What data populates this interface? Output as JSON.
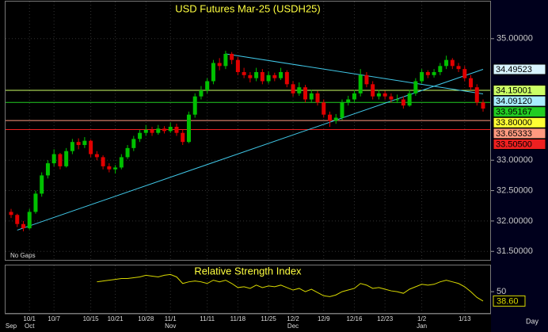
{
  "chart_data": {
    "type": "candlestick",
    "title": "USD Futures Mar-25 (USDH25)",
    "annotation": "No Gaps",
    "x_unit_label": "Day",
    "categories": [
      null,
      null,
      null,
      "10/1",
      null,
      null,
      null,
      "10/7",
      null,
      null,
      null,
      null,
      null,
      "10/15",
      null,
      null,
      null,
      "10/21",
      null,
      null,
      null,
      null,
      "10/28",
      null,
      null,
      null,
      "11/1",
      null,
      null,
      null,
      null,
      null,
      "11/11",
      null,
      null,
      null,
      null,
      "11/18",
      null,
      null,
      null,
      null,
      "11/25",
      null,
      null,
      null,
      "12/2",
      null,
      null,
      null,
      null,
      "12/9",
      null,
      null,
      null,
      null,
      "12/16",
      null,
      null,
      null,
      null,
      "12/23",
      null,
      null,
      null,
      null,
      null,
      "1/2",
      null,
      null,
      null,
      null,
      null,
      null,
      "1/13",
      null,
      null,
      null
    ],
    "month_labels": [
      "Sep",
      null,
      null,
      "Oct",
      null,
      null,
      null,
      null,
      null,
      null,
      null,
      null,
      null,
      null,
      null,
      null,
      null,
      null,
      null,
      null,
      null,
      null,
      null,
      null,
      null,
      null,
      "Nov",
      null,
      null,
      null,
      null,
      null,
      null,
      null,
      null,
      null,
      null,
      null,
      null,
      null,
      null,
      null,
      null,
      null,
      null,
      null,
      "Dec",
      null,
      null,
      null,
      null,
      null,
      null,
      null,
      null,
      null,
      null,
      null,
      null,
      null,
      null,
      null,
      null,
      null,
      null,
      null,
      null,
      "Jan",
      null,
      null,
      null,
      null,
      null,
      null,
      null,
      null,
      null,
      null
    ],
    "ohlc": {
      "open": [
        32.15,
        32.1,
        31.95,
        31.88,
        32.15,
        32.45,
        32.75,
        32.95,
        33.1,
        32.9,
        33.15,
        33.3,
        33.25,
        33.32,
        33.1,
        33.05,
        32.9,
        32.85,
        32.88,
        33.05,
        33.2,
        33.35,
        33.45,
        33.5,
        33.45,
        33.52,
        33.48,
        33.55,
        33.45,
        33.3,
        33.75,
        34.05,
        34.15,
        34.3,
        34.6,
        34.55,
        34.75,
        34.65,
        34.45,
        34.4,
        34.35,
        34.45,
        34.3,
        34.4,
        34.35,
        34.45,
        34.25,
        34.1,
        34.2,
        34.0,
        34.1,
        33.95,
        33.75,
        33.65,
        33.7,
        33.95,
        34.0,
        34.1,
        34.4,
        34.25,
        34.05,
        34.1,
        34.05,
        34.0,
        34.0,
        33.9,
        34.1,
        34.3,
        34.45,
        34.4,
        34.45,
        34.55,
        34.65,
        34.55,
        34.5,
        34.35,
        34.2,
        33.95
      ],
      "high": [
        32.2,
        32.12,
        32.0,
        32.2,
        32.5,
        32.8,
        33.0,
        33.18,
        33.12,
        33.2,
        33.35,
        33.36,
        33.38,
        33.34,
        33.15,
        33.08,
        32.95,
        32.92,
        33.1,
        33.25,
        33.4,
        33.5,
        33.58,
        33.55,
        33.58,
        33.56,
        33.62,
        33.6,
        33.5,
        33.8,
        34.1,
        34.22,
        34.35,
        34.65,
        34.68,
        34.8,
        34.78,
        34.7,
        34.52,
        34.45,
        34.52,
        34.5,
        34.46,
        34.44,
        34.52,
        34.48,
        34.3,
        34.28,
        34.24,
        34.16,
        34.14,
        34.0,
        33.8,
        33.76,
        34.0,
        34.06,
        34.16,
        34.5,
        34.45,
        34.3,
        34.16,
        34.14,
        34.1,
        34.08,
        34.05,
        34.16,
        34.35,
        34.5,
        34.48,
        34.5,
        34.6,
        34.72,
        34.68,
        34.6,
        34.55,
        34.4,
        34.25,
        34.0
      ],
      "low": [
        32.05,
        31.9,
        31.83,
        31.86,
        32.12,
        32.4,
        32.7,
        32.9,
        32.85,
        32.88,
        33.1,
        33.18,
        33.2,
        33.05,
        33.0,
        32.85,
        32.8,
        32.78,
        32.85,
        33.02,
        33.15,
        33.3,
        33.4,
        33.4,
        33.42,
        33.44,
        33.45,
        33.4,
        33.25,
        33.28,
        33.7,
        34.0,
        34.1,
        34.25,
        34.48,
        34.5,
        34.58,
        34.4,
        34.35,
        34.28,
        34.3,
        34.25,
        34.26,
        34.3,
        34.32,
        34.2,
        34.05,
        34.06,
        33.95,
        33.96,
        33.9,
        33.7,
        33.55,
        33.6,
        33.66,
        33.9,
        33.96,
        34.05,
        34.2,
        34.0,
        34.0,
        34.0,
        33.95,
        33.94,
        33.85,
        33.88,
        34.06,
        34.26,
        34.35,
        34.36,
        34.4,
        34.5,
        34.5,
        34.45,
        34.3,
        34.15,
        33.9,
        33.8
      ],
      "close": [
        32.1,
        31.95,
        31.88,
        32.15,
        32.45,
        32.75,
        32.95,
        33.1,
        32.9,
        33.15,
        33.3,
        33.25,
        33.32,
        33.1,
        33.05,
        32.9,
        32.85,
        32.88,
        33.05,
        33.2,
        33.35,
        33.45,
        33.5,
        33.45,
        33.52,
        33.48,
        33.55,
        33.45,
        33.3,
        33.75,
        34.05,
        34.15,
        34.3,
        34.6,
        34.55,
        34.75,
        34.65,
        34.45,
        34.4,
        34.35,
        34.45,
        34.3,
        34.4,
        34.35,
        34.45,
        34.25,
        34.1,
        34.2,
        34.0,
        34.1,
        33.95,
        33.75,
        33.65,
        33.7,
        33.95,
        34.0,
        34.1,
        34.4,
        34.25,
        34.05,
        34.1,
        34.05,
        34.0,
        34.0,
        33.9,
        34.1,
        34.3,
        34.45,
        34.4,
        34.45,
        34.55,
        34.65,
        34.55,
        34.5,
        34.35,
        34.2,
        33.95,
        33.85
      ]
    },
    "up_color": "#00c000",
    "down_color": "#e00000",
    "ylim": [
      31.36,
      35.61
    ],
    "yticks": [
      {
        "value": 35,
        "label": "35.00000"
      },
      {
        "value": 33,
        "label": "33.00000"
      },
      {
        "value": 32.5,
        "label": "32.50000"
      },
      {
        "value": 32,
        "label": "32.00000"
      },
      {
        "value": 31.5,
        "label": "31.50000"
      }
    ],
    "grid": true,
    "levels": [
      {
        "value": 34.49523,
        "label": "34.49523",
        "color": "#d8f4ff",
        "line": false
      },
      {
        "value": 34.15001,
        "label": "34.15001",
        "color": "#ccff66",
        "line": true
      },
      {
        "value": 34.0912,
        "label": "34.09120",
        "color": "#a8eeff",
        "line": false
      },
      {
        "value": 33.95167,
        "label": "33.95167",
        "color": "#22cc22",
        "line": true
      },
      {
        "value": 33.8,
        "label": "33.80000",
        "color": "#ffff33",
        "line": false
      },
      {
        "value": 33.65333,
        "label": "33.65333",
        "color": "#ff9a80",
        "line": true
      },
      {
        "value": 33.505,
        "label": "33.50500",
        "color": "#ee2020",
        "line": true
      }
    ],
    "trendlines": [
      {
        "x": [
          1,
          77
        ],
        "y": [
          31.85,
          34.49523
        ],
        "color": "#40c8e8"
      },
      {
        "x": [
          35,
          77
        ],
        "y": [
          34.75,
          34.0912
        ],
        "color": "#40c8e8"
      }
    ],
    "indicator": {
      "type": "line",
      "title": "Relative Strength Index",
      "color": "#d8d800",
      "ylim": [
        24,
        82
      ],
      "yticks": [
        50
      ],
      "values": [
        null,
        null,
        null,
        null,
        null,
        null,
        null,
        null,
        null,
        null,
        null,
        null,
        null,
        null,
        62,
        63,
        64,
        65,
        66,
        66,
        67,
        68,
        70,
        69,
        68,
        70,
        71,
        68,
        60,
        62,
        63,
        62,
        60,
        64,
        62,
        64,
        60,
        55,
        56,
        54,
        58,
        55,
        57,
        56,
        58,
        55,
        52,
        54,
        50,
        53,
        49,
        45,
        44,
        46,
        50,
        52,
        54,
        60,
        58,
        54,
        55,
        53,
        51,
        50,
        48,
        53,
        56,
        59,
        58,
        59,
        62,
        64,
        62,
        60,
        56,
        50,
        43,
        38.6
      ],
      "value_labels": [
        null,
        null,
        null,
        null,
        null,
        null,
        null,
        null,
        null,
        null,
        null,
        null,
        null,
        null,
        null,
        null,
        null,
        null,
        null,
        null,
        null,
        null,
        null,
        null,
        null,
        null,
        null,
        null,
        null,
        null,
        null,
        null,
        null,
        null,
        null,
        null,
        null,
        null,
        null,
        null,
        null,
        null,
        null,
        null,
        null,
        null,
        null,
        null,
        null,
        null,
        null,
        null,
        null,
        null,
        null,
        null,
        null,
        null,
        null,
        null,
        null,
        null,
        null,
        null,
        null,
        null,
        null,
        null,
        null,
        null,
        null,
        null,
        null,
        null,
        null,
        null,
        null,
        "38.60"
      ]
    }
  }
}
